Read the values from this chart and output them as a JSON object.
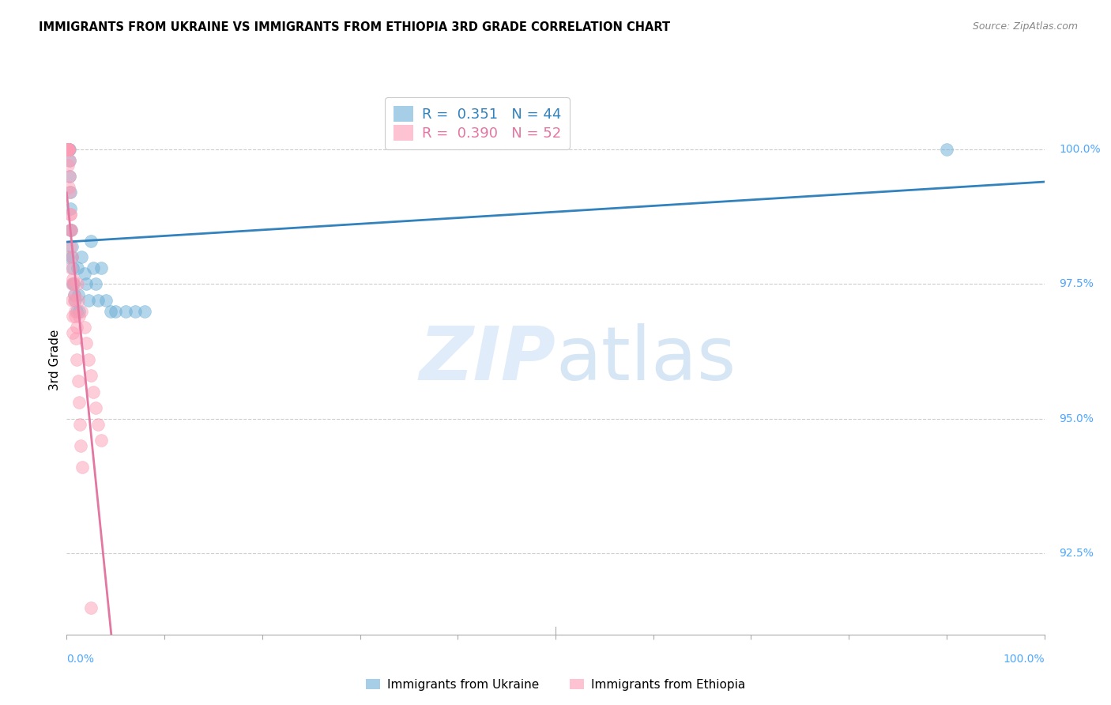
{
  "title": "IMMIGRANTS FROM UKRAINE VS IMMIGRANTS FROM ETHIOPIA 3RD GRADE CORRELATION CHART",
  "source": "Source: ZipAtlas.com",
  "ylabel": "3rd Grade",
  "yticks": [
    "92.5%",
    "95.0%",
    "97.5%",
    "100.0%"
  ],
  "ytick_vals": [
    92.5,
    95.0,
    97.5,
    100.0
  ],
  "ukraine_color": "#6baed6",
  "ethiopia_color": "#fc9cb4",
  "ukraine_line_color": "#3182bd",
  "ethiopia_line_color": "#e377a2",
  "ukraine_x": [
    0.05,
    0.08,
    0.1,
    0.12,
    0.15,
    0.18,
    0.2,
    0.22,
    0.25,
    0.28,
    0.3,
    0.32,
    0.35,
    0.38,
    0.4,
    0.45,
    0.5,
    0.55,
    0.6,
    0.65,
    0.7,
    0.8,
    0.9,
    1.0,
    1.1,
    1.2,
    1.3,
    1.5,
    1.8,
    2.0,
    2.2,
    2.5,
    2.7,
    3.0,
    3.2,
    3.5,
    4.0,
    4.5,
    5.0,
    6.0,
    7.0,
    8.0,
    90.0,
    0.1
  ],
  "ukraine_y": [
    100.0,
    100.0,
    100.0,
    100.0,
    100.0,
    100.0,
    100.0,
    100.0,
    100.0,
    100.0,
    99.8,
    99.5,
    99.2,
    98.9,
    98.5,
    98.5,
    98.2,
    98.0,
    97.8,
    97.5,
    97.5,
    97.3,
    97.2,
    97.0,
    97.8,
    97.3,
    97.0,
    98.0,
    97.7,
    97.5,
    97.2,
    98.3,
    97.8,
    97.5,
    97.2,
    97.8,
    97.2,
    97.0,
    97.0,
    97.0,
    97.0,
    97.0,
    100.0,
    98.0
  ],
  "ethiopia_x": [
    0.05,
    0.08,
    0.1,
    0.12,
    0.15,
    0.18,
    0.2,
    0.22,
    0.25,
    0.28,
    0.3,
    0.32,
    0.35,
    0.38,
    0.4,
    0.45,
    0.5,
    0.55,
    0.6,
    0.65,
    0.7,
    0.8,
    0.9,
    1.0,
    1.1,
    1.2,
    1.3,
    1.5,
    1.8,
    2.0,
    2.2,
    2.5,
    2.7,
    3.0,
    3.2,
    3.5,
    0.15,
    0.25,
    0.35,
    0.45,
    0.55,
    0.65,
    0.75,
    0.85,
    0.95,
    1.05,
    1.15,
    1.25,
    1.35,
    1.45,
    1.55,
    2.5
  ],
  "ethiopia_y": [
    100.0,
    100.0,
    100.0,
    100.0,
    100.0,
    100.0,
    100.0,
    100.0,
    100.0,
    99.8,
    99.5,
    99.2,
    98.8,
    98.5,
    98.2,
    97.8,
    97.5,
    97.2,
    96.9,
    96.6,
    97.5,
    97.2,
    97.0,
    96.7,
    97.5,
    97.2,
    96.9,
    97.0,
    96.7,
    96.4,
    96.1,
    95.8,
    95.5,
    95.2,
    94.9,
    94.6,
    99.7,
    99.3,
    98.8,
    98.5,
    98.0,
    97.6,
    97.3,
    96.9,
    96.5,
    96.1,
    95.7,
    95.3,
    94.9,
    94.5,
    94.1,
    91.5
  ],
  "xlim": [
    0,
    100
  ],
  "ylim": [
    91.0,
    101.2
  ]
}
